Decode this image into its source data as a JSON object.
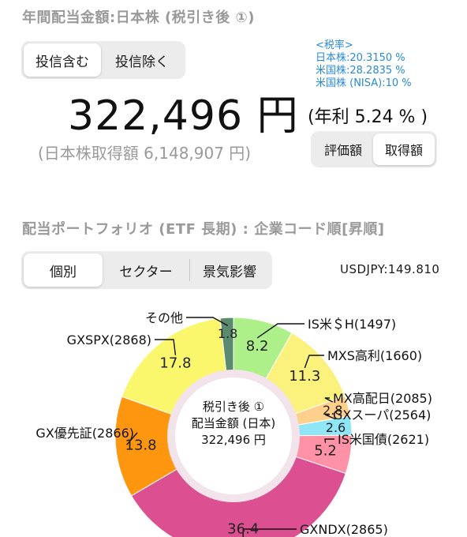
{
  "header": {
    "title": "年間配当金額:日本株 (税引き後 ①)"
  },
  "fund_toggle": {
    "options": [
      "投信含む",
      "投信除く"
    ],
    "selected": 0
  },
  "tax_rates": {
    "title": "<税率>",
    "lines": [
      "日本株:20.3150 %",
      "米国株:28.2835 %",
      "米国株 (NISA):10 %"
    ]
  },
  "summary": {
    "amount": "322,496 円",
    "yield": "(年利 5.24 % )",
    "acquisition": "(日本株取得額 6,148,907 円)"
  },
  "basis_toggle": {
    "options": [
      "評価額",
      "取得額"
    ],
    "selected": 1
  },
  "portfolio": {
    "title": "配当ポートフォリオ (ETF 長期) : 企業コード順[昇順]"
  },
  "view_tabs": {
    "options": [
      "個別",
      "セクター",
      "景気影響"
    ],
    "selected": 0
  },
  "fx": {
    "label": "USDJPY:149.810"
  },
  "donut_center": {
    "line1": "税引き後 ①",
    "line2": "配当金額 (日本)",
    "line3": "322,496 円"
  },
  "chart_data": {
    "type": "pie",
    "unit": "%",
    "slices": [
      {
        "label": "IS米＄H(1497)",
        "value": 8.2,
        "color": "#adf08a"
      },
      {
        "label": "MXS高利(1660)",
        "value": 11.3,
        "color": "#fbf27e"
      },
      {
        "label": "MX高配日(2085)",
        "value": 2.8,
        "color": "#ffcf8c"
      },
      {
        "label": "GXスーパ(2564)",
        "value": 2.6,
        "color": "#8ee6f6"
      },
      {
        "label": "IS米国債(2621)",
        "value": 5.2,
        "color": "#ff92a6"
      },
      {
        "label": "GXNDX(2865)",
        "value": 36.4,
        "color": "#dc5092"
      },
      {
        "label": "GX優先証(2866)",
        "value": 13.8,
        "color": "#ff9610"
      },
      {
        "label": "GXSPX(2868)",
        "value": 17.8,
        "color": "#fbf76c"
      },
      {
        "label": "その他",
        "value": 1.8,
        "color": "#5c8a6c"
      }
    ]
  }
}
